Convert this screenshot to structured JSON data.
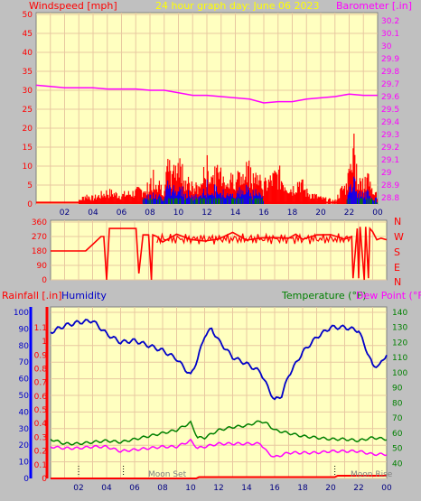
{
  "header": {
    "left_label": "Windspeed [mph]",
    "center_label": "24 hour graph day:  June 06 2023",
    "right_label": "Barometer [.in]"
  },
  "lower_labels": {
    "rainfall": "Rainfall [.in]",
    "humidity": "Humidity",
    "temperature": "Temperature (°F)",
    "dewpoint": "Dew Point (°F)"
  },
  "wind_dir_letters": [
    "N",
    "W",
    "S",
    "E",
    "N"
  ],
  "moon_labels": {
    "set": "Moon Set",
    "rise": "Moon Rise"
  },
  "colors": {
    "plot_bg": "#ffffc0",
    "grid": "#e8c8a0",
    "wind": "#ff0000",
    "gust_blue": "#0000ff",
    "green": "#008000",
    "barometer": "#ff00ff",
    "humidity": "#0000c8",
    "temperature": "#008000",
    "dewpoint": "#ff00ff",
    "rain": "#ff0000",
    "header_yellow": "#ffff00"
  },
  "chart_data": [
    {
      "type": "line",
      "name": "wind_barometer",
      "x_ticks": [
        "02",
        "04",
        "06",
        "08",
        "10",
        "12",
        "14",
        "16",
        "18",
        "20",
        "22",
        "00"
      ],
      "y_left_ticks": [
        "0",
        "5",
        "10",
        "15",
        "20",
        "25",
        "30",
        "35",
        "40",
        "45",
        "50"
      ],
      "y_left_lim": [
        0,
        50
      ],
      "y_right_ticks": [
        "28.8",
        "28.9",
        "29",
        "29.1",
        "29.2",
        "29.3",
        "29.4",
        "29.5",
        "29.6",
        "29.7",
        "29.8",
        "29.9",
        "30",
        "30.1",
        "30.2"
      ],
      "y_right_lim": [
        28.75,
        30.25
      ],
      "series": [
        {
          "name": "Barometer [.in]",
          "x": [
            0,
            1,
            2,
            3,
            4,
            5,
            6,
            7,
            8,
            9,
            10,
            11,
            12,
            13,
            14,
            15,
            16,
            17,
            18,
            19,
            20,
            21,
            22,
            23,
            24
          ],
          "values": [
            29.69,
            29.68,
            29.67,
            29.67,
            29.67,
            29.66,
            29.66,
            29.66,
            29.65,
            29.65,
            29.63,
            29.61,
            29.61,
            29.6,
            29.59,
            29.58,
            29.55,
            29.56,
            29.56,
            29.58,
            29.59,
            29.6,
            29.62,
            29.61,
            29.61
          ]
        },
        {
          "name": "Windspeed [mph]",
          "x": [
            0,
            3,
            3.5,
            4,
            5,
            6,
            7,
            7.5,
            8,
            8.3,
            8.6,
            9,
            9.3,
            9.6,
            10,
            10.3,
            10.7,
            11,
            11.5,
            12,
            12.5,
            13,
            13.5,
            14,
            14.5,
            15,
            15.5,
            16,
            16.5,
            17,
            17.5,
            18,
            18.5,
            19,
            20,
            21,
            21.5,
            21.8,
            22,
            22.3,
            22.6,
            23,
            23.3,
            23.6,
            24
          ],
          "values": [
            1,
            1,
            3,
            2,
            4,
            3,
            4,
            5,
            6,
            10,
            7,
            5,
            12,
            9,
            15,
            10,
            8,
            5,
            6,
            12,
            9,
            11,
            7,
            10,
            8,
            12,
            9,
            6,
            8,
            10,
            7,
            5,
            8,
            4,
            2,
            1,
            5,
            6,
            12,
            19,
            8,
            6,
            9,
            4,
            3
          ]
        }
      ]
    },
    {
      "type": "line",
      "name": "wind_direction",
      "y_ticks": [
        "360",
        "270",
        "180",
        "90",
        "0"
      ],
      "y_lim": [
        0,
        360
      ],
      "series": [
        {
          "name": "Wind direction",
          "x": [
            0,
            2.5,
            3,
            3.6,
            3.8,
            4,
            4.2,
            4.6,
            5.6,
            6.1,
            6.3,
            6.6,
            7,
            7.2,
            7.3,
            7.6,
            8,
            9,
            10,
            11,
            12,
            13,
            14,
            15,
            16,
            17,
            17.5,
            18,
            19,
            20,
            21,
            21.5,
            21.6,
            21.9,
            22,
            22.1,
            22.4,
            22.5,
            22.7,
            22.8,
            23,
            23.3,
            23.6,
            24
          ],
          "values": [
            180,
            180,
            220,
            270,
            270,
            0,
            320,
            320,
            320,
            320,
            40,
            280,
            280,
            0,
            280,
            270,
            250,
            270,
            245,
            260,
            250,
            280,
            260,
            270,
            245,
            260,
            270,
            270,
            270,
            270,
            270,
            270,
            10,
            320,
            10,
            330,
            0,
            330,
            10,
            320,
            300,
            250,
            260,
            250
          ]
        }
      ]
    },
    {
      "type": "line",
      "name": "humidity_temperature_rain",
      "x_ticks": [
        "02",
        "04",
        "06",
        "08",
        "10",
        "12",
        "14",
        "16",
        "18",
        "20",
        "22",
        "00"
      ],
      "y_humidity_ticks": [
        "0",
        "10",
        "20",
        "30",
        "40",
        "50",
        "60",
        "70",
        "80",
        "90",
        "100"
      ],
      "y_humidity_lim": [
        0,
        100
      ],
      "y_rain_ticks": [
        "0",
        "0.1",
        "0.2",
        "0.3",
        "0.4",
        "0.5",
        "0.6",
        "0.7",
        "0.8",
        "0.9",
        "1",
        "1.1"
      ],
      "y_rain_lim": [
        0,
        1.1
      ],
      "y_temp_ticks": [
        "40",
        "50",
        "60",
        "70",
        "80",
        "90",
        "100",
        "110",
        "120",
        "130",
        "140"
      ],
      "y_temp_lim": [
        30,
        140
      ],
      "series": [
        {
          "name": "Humidity",
          "x": [
            0,
            1,
            2,
            3,
            4,
            5,
            6,
            7,
            8,
            9,
            10,
            10.5,
            11,
            11.5,
            12,
            13,
            14,
            15,
            15.5,
            16,
            16.5,
            17,
            18,
            19,
            20,
            21,
            22,
            23,
            23.5,
            24
          ],
          "values": [
            88,
            92,
            94,
            95,
            87,
            82,
            83,
            80,
            77,
            72,
            62,
            72,
            86,
            90,
            83,
            73,
            69,
            64,
            55,
            47,
            50,
            62,
            76,
            85,
            91,
            91,
            89,
            68,
            68,
            75
          ]
        },
        {
          "name": "Temperature (°F)",
          "x": [
            0,
            1,
            2,
            3,
            4,
            5,
            6,
            7,
            8,
            9,
            10,
            10.5,
            11,
            12,
            13,
            14,
            15,
            15.5,
            16,
            17,
            18,
            19,
            20,
            21,
            22,
            23,
            24
          ],
          "values": [
            56,
            53,
            53,
            54,
            55,
            54,
            56,
            58,
            60,
            62,
            67,
            57,
            57,
            62,
            64,
            65,
            68,
            66,
            62,
            60,
            58,
            57,
            56,
            56,
            55,
            57,
            56
          ]
        },
        {
          "name": "Dew Point (°F)",
          "x": [
            0,
            1,
            2,
            3,
            4,
            5,
            6,
            7,
            8,
            9,
            10,
            10.5,
            11,
            12,
            13,
            14,
            15,
            15.5,
            16,
            17,
            18,
            19,
            20,
            21,
            22,
            23,
            24
          ],
          "values": [
            51,
            50,
            50,
            51,
            51,
            48,
            49,
            50,
            51,
            51,
            55,
            50,
            51,
            53,
            53,
            53,
            53,
            47,
            44,
            47,
            47,
            47,
            48,
            48,
            48,
            46,
            46
          ]
        },
        {
          "name": "Rainfall [.in]",
          "x": [
            0,
            10.4,
            10.6,
            20.3,
            20.5,
            24
          ],
          "values": [
            0,
            0,
            0.01,
            0.01,
            0.02,
            0.02
          ]
        }
      ]
    }
  ]
}
